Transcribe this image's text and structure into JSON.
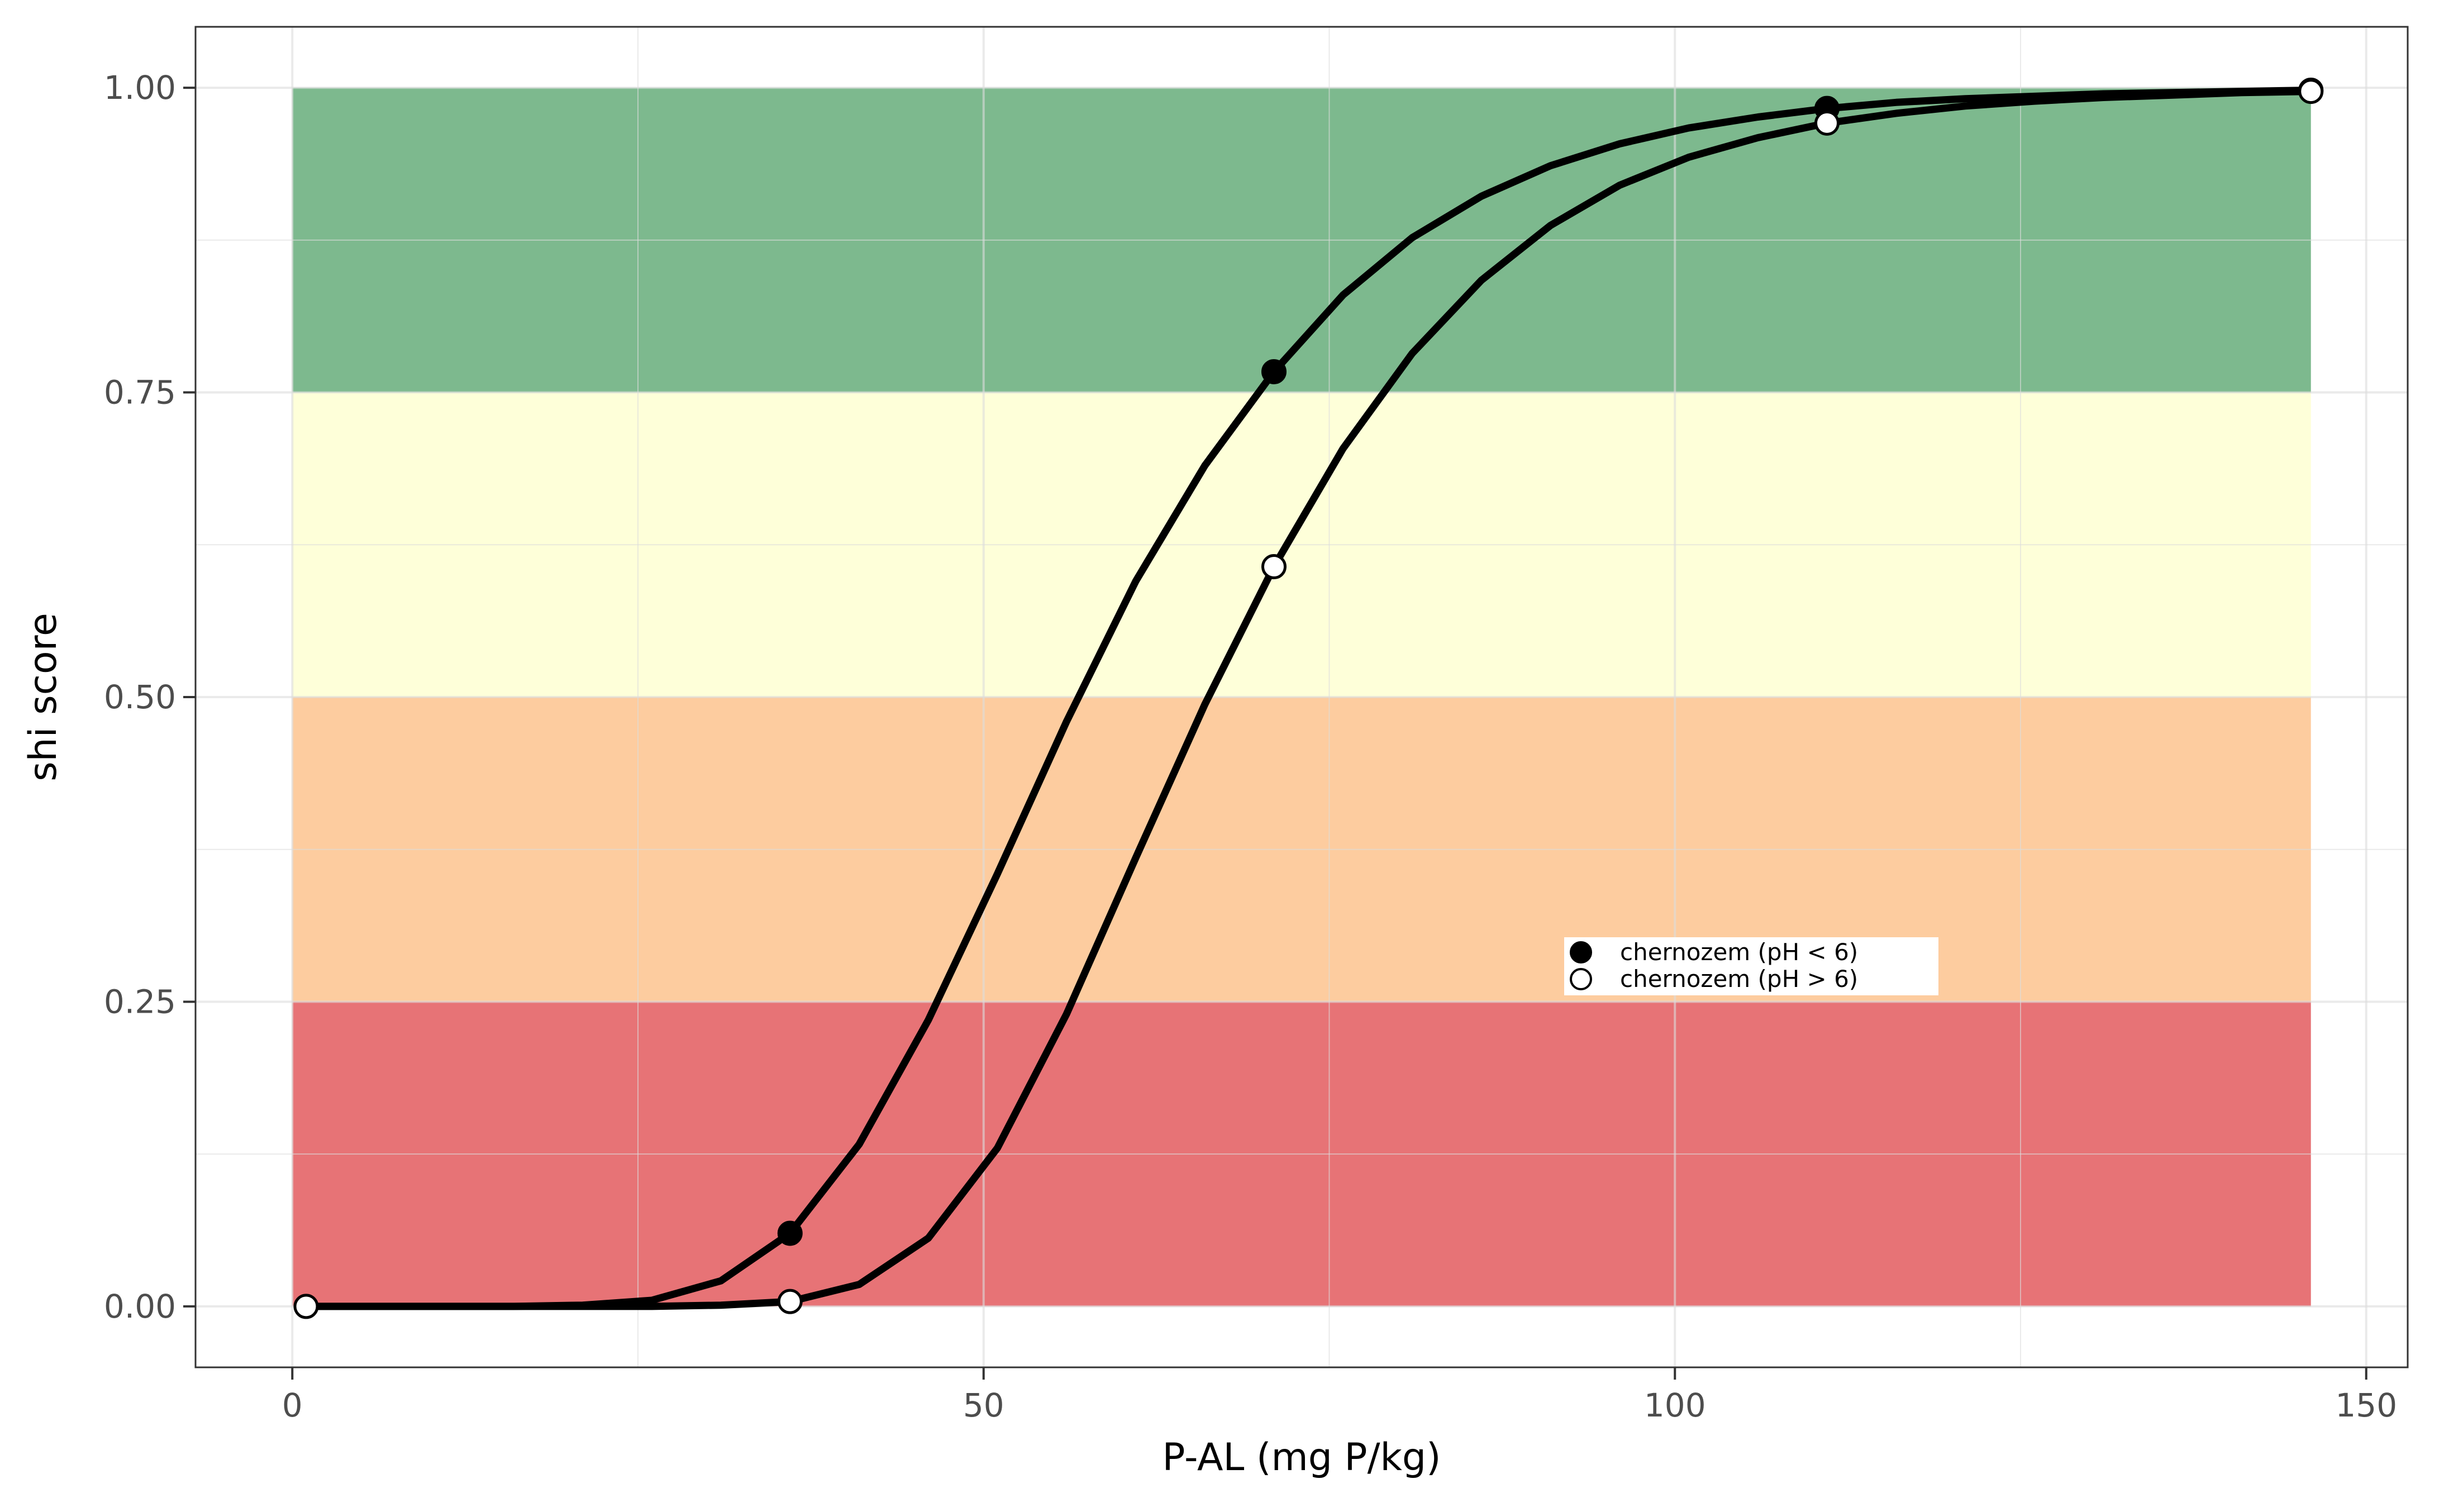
{
  "chart_data": {
    "type": "line",
    "xlabel": "P-AL (mg P/kg)",
    "ylabel": "shi score",
    "xlim": [
      -7,
      153
    ],
    "ylim": [
      -0.05,
      1.05
    ],
    "xticks": [
      0,
      50,
      100,
      150
    ],
    "xtick_labels": [
      "0",
      "50",
      "100",
      "150"
    ],
    "yticks": [
      0,
      0.25,
      0.5,
      0.75,
      1
    ],
    "ytick_labels": [
      "0.00",
      "0.25",
      "0.50",
      "0.75",
      "1.00"
    ],
    "grid": true,
    "legend_position": "inside-right",
    "bands": [
      {
        "x": [
          0,
          146
        ],
        "y": [
          0.75,
          1.0
        ],
        "color": "#7db98e"
      },
      {
        "x": [
          0,
          146
        ],
        "y": [
          0.5,
          0.75
        ],
        "color": "#feffd9"
      },
      {
        "x": [
          0,
          146
        ],
        "y": [
          0.25,
          0.5
        ],
        "color": "#fdcc9f"
      },
      {
        "x": [
          0,
          146
        ],
        "y": [
          0.0,
          0.25
        ],
        "color": "#e77376"
      }
    ],
    "series": [
      {
        "name": "chernozem  (pH < 6)",
        "marker": "filled",
        "x": [
          1,
          6,
          11,
          16,
          21,
          26,
          31,
          36,
          41,
          46,
          51,
          56,
          61,
          66,
          71,
          76,
          81,
          86,
          91,
          96,
          101,
          106,
          111,
          116,
          121,
          126,
          131,
          136,
          141,
          146
        ],
        "y": [
          0.0,
          0.0,
          0.0,
          0.0,
          0.001,
          0.005,
          0.021,
          0.06,
          0.133,
          0.235,
          0.355,
          0.48,
          0.595,
          0.69,
          0.767,
          0.83,
          0.877,
          0.911,
          0.936,
          0.954,
          0.967,
          0.976,
          0.983,
          0.988,
          0.991,
          0.993,
          0.995,
          0.996,
          0.997,
          0.998
        ],
        "markers": [
          {
            "x": 36,
            "y": 0.06
          },
          {
            "x": 71,
            "y": 0.767
          },
          {
            "x": 111,
            "y": 0.983
          },
          {
            "x": 146,
            "y": 0.998
          }
        ]
      },
      {
        "name": "chernozem  (pH > 6)",
        "marker": "open",
        "x": [
          1,
          6,
          11,
          16,
          21,
          26,
          31,
          36,
          41,
          46,
          51,
          56,
          61,
          66,
          71,
          76,
          81,
          86,
          91,
          96,
          101,
          106,
          111,
          116,
          121,
          126,
          131,
          136,
          141,
          146
        ],
        "y": [
          0.0,
          0.0,
          0.0,
          0.0,
          0.0,
          0.0,
          0.001,
          0.004,
          0.018,
          0.056,
          0.13,
          0.24,
          0.368,
          0.494,
          0.607,
          0.704,
          0.782,
          0.842,
          0.887,
          0.92,
          0.943,
          0.959,
          0.971,
          0.979,
          0.985,
          0.989,
          0.992,
          0.994,
          0.996,
          0.997
        ],
        "markers": [
          {
            "x": 1,
            "y": 0.0
          },
          {
            "x": 36,
            "y": 0.004
          },
          {
            "x": 71,
            "y": 0.607
          },
          {
            "x": 111,
            "y": 0.971
          },
          {
            "x": 146,
            "y": 0.997
          }
        ]
      }
    ]
  }
}
